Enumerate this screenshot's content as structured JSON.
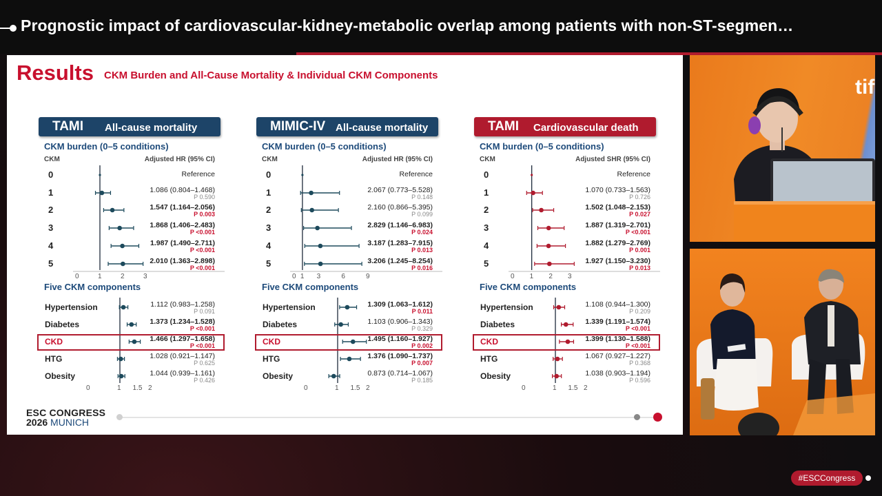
{
  "header": {
    "title": "Prognostic impact of cardiovascular-kidney-metabolic overlap among patients with non-ST-segmen…"
  },
  "slide": {
    "title": "Results",
    "subtitle": "CKM Burden and All-Cause Mortality & Individual CKM Components",
    "logo_line1": "ESC CONGRESS",
    "logo_year": "2026",
    "logo_city": "MUNICH"
  },
  "panels": [
    {
      "name": "TAMI",
      "outcome": "All-cause mortality",
      "header_color": "#1d4468",
      "marker_color": "#1d4a5c",
      "burden_title": "CKM burden (0–5 conditions)",
      "col_left": "CKM",
      "col_right": "Adjusted HR (95% CI)",
      "components_title": "Five CKM components",
      "burden_axis": {
        "min": 0,
        "max": 3,
        "ticks": [
          "0",
          "1",
          "2",
          "3"
        ]
      },
      "comp_axis": {
        "min": 0,
        "max": 2,
        "ticks": [
          "0",
          "1",
          "1.5",
          "2"
        ]
      },
      "burden": [
        {
          "label": "0",
          "hr": 1.0,
          "lo": 1.0,
          "hi": 1.0,
          "text": "Reference",
          "p": "",
          "sig": false
        },
        {
          "label": "1",
          "hr": 1.086,
          "lo": 0.804,
          "hi": 1.468,
          "text": "1.086 (0.804–1.468)",
          "p": "P 0.590",
          "sig": false
        },
        {
          "label": "2",
          "hr": 1.547,
          "lo": 1.164,
          "hi": 2.056,
          "text": "1.547 (1.164–2.056)",
          "p": "P 0.003",
          "sig": true
        },
        {
          "label": "3",
          "hr": 1.868,
          "lo": 1.406,
          "hi": 2.483,
          "text": "1.868 (1.406–2.483)",
          "p": "P <0.001",
          "sig": true
        },
        {
          "label": "4",
          "hr": 1.987,
          "lo": 1.49,
          "hi": 2.711,
          "text": "1.987 (1.490–2.711)",
          "p": "P <0.001",
          "sig": true
        },
        {
          "label": "5",
          "hr": 2.01,
          "lo": 1.363,
          "hi": 2.898,
          "text": "2.010 (1.363–2.898)",
          "p": "P <0.001",
          "sig": true
        }
      ],
      "components": [
        {
          "label": "Hypertension",
          "hr": 1.112,
          "lo": 0.983,
          "hi": 1.258,
          "text": "1.112 (0.983–1.258)",
          "p": "P 0.091",
          "sig": false
        },
        {
          "label": "Diabetes",
          "hr": 1.373,
          "lo": 1.234,
          "hi": 1.528,
          "text": "1.373 (1.234–1.528)",
          "p": "P <0.001",
          "sig": true
        },
        {
          "label": "CKD",
          "hr": 1.466,
          "lo": 1.297,
          "hi": 1.658,
          "text": "1.466 (1.297–1.658)",
          "p": "P <0.001",
          "sig": true
        },
        {
          "label": "HTG",
          "hr": 1.028,
          "lo": 0.921,
          "hi": 1.147,
          "text": "1.028 (0.921–1.147)",
          "p": "P 0.625",
          "sig": false
        },
        {
          "label": "Obesity",
          "hr": 1.044,
          "lo": 0.939,
          "hi": 1.161,
          "text": "1.044 (0.939–1.161)",
          "p": "P 0.426",
          "sig": false
        }
      ]
    },
    {
      "name": "MIMIC-IV",
      "outcome": "All-cause mortality",
      "header_color": "#1d4468",
      "marker_color": "#1d4a5c",
      "burden_title": "CKM burden (0–5 conditions)",
      "col_left": "CKM",
      "col_right": "Adjusted HR (95% CI)",
      "components_title": "Five CKM components",
      "burden_axis": {
        "min": 0,
        "max": 9,
        "ticks": [
          "0",
          "1",
          "3",
          "6",
          "9"
        ]
      },
      "comp_axis": {
        "min": 0,
        "max": 2,
        "ticks": [
          "0",
          "1",
          "1.5",
          "2"
        ]
      },
      "burden": [
        {
          "label": "0",
          "hr": 1.0,
          "lo": 1.0,
          "hi": 1.0,
          "text": "Reference",
          "p": "",
          "sig": false
        },
        {
          "label": "1",
          "hr": 2.067,
          "lo": 0.773,
          "hi": 5.528,
          "text": "2.067 (0.773–5.528)",
          "p": "P 0.148",
          "sig": false
        },
        {
          "label": "2",
          "hr": 2.16,
          "lo": 0.866,
          "hi": 5.395,
          "text": "2.160 (0.866–5.395)",
          "p": "P 0.099",
          "sig": false
        },
        {
          "label": "3",
          "hr": 2.829,
          "lo": 1.146,
          "hi": 6.983,
          "text": "2.829 (1.146–6.983)",
          "p": "P 0.024",
          "sig": true
        },
        {
          "label": "4",
          "hr": 3.187,
          "lo": 1.283,
          "hi": 7.915,
          "text": "3.187 (1.283–7.915)",
          "p": "P 0.013",
          "sig": true
        },
        {
          "label": "5",
          "hr": 3.206,
          "lo": 1.245,
          "hi": 8.254,
          "text": "3.206 (1.245–8.254)",
          "p": "P 0.016",
          "sig": true
        }
      ],
      "components": [
        {
          "label": "Hypertension",
          "hr": 1.309,
          "lo": 1.063,
          "hi": 1.612,
          "text": "1.309 (1.063–1.612)",
          "p": "P 0.011",
          "sig": true
        },
        {
          "label": "Diabetes",
          "hr": 1.103,
          "lo": 0.906,
          "hi": 1.343,
          "text": "1.103 (0.906–1.343)",
          "p": "P 0.329",
          "sig": false
        },
        {
          "label": "CKD",
          "hr": 1.495,
          "lo": 1.16,
          "hi": 1.927,
          "text": "1.495 (1.160–1.927)",
          "p": "P 0.002",
          "sig": true
        },
        {
          "label": "HTG",
          "hr": 1.376,
          "lo": 1.09,
          "hi": 1.737,
          "text": "1.376 (1.090–1.737)",
          "p": "P 0.007",
          "sig": true
        },
        {
          "label": "Obesity",
          "hr": 0.873,
          "lo": 0.714,
          "hi": 1.067,
          "text": "0.873 (0.714–1.067)",
          "p": "P 0.185",
          "sig": false
        }
      ]
    },
    {
      "name": "TAMI",
      "outcome": "Cardiovascular death",
      "header_color": "#b01b2e",
      "marker_color": "#b01b2e",
      "burden_title": "CKM burden (0–5 conditions)",
      "col_left": "CKM",
      "col_right": "Adjusted SHR (95% CI)",
      "components_title": "Five CKM components",
      "burden_axis": {
        "min": 0,
        "max": 3,
        "ticks": [
          "0",
          "1",
          "2",
          "3"
        ]
      },
      "comp_axis": {
        "min": 0,
        "max": 2,
        "ticks": [
          "0",
          "1",
          "1.5",
          "2"
        ]
      },
      "burden": [
        {
          "label": "0",
          "hr": 1.0,
          "lo": 1.0,
          "hi": 1.0,
          "text": "Reference",
          "p": "",
          "sig": false
        },
        {
          "label": "1",
          "hr": 1.07,
          "lo": 0.733,
          "hi": 1.563,
          "text": "1.070 (0.733–1.563)",
          "p": "P 0.726",
          "sig": false
        },
        {
          "label": "2",
          "hr": 1.502,
          "lo": 1.048,
          "hi": 2.153,
          "text": "1.502 (1.048–2.153)",
          "p": "P 0.027",
          "sig": true
        },
        {
          "label": "3",
          "hr": 1.887,
          "lo": 1.319,
          "hi": 2.701,
          "text": "1.887 (1.319–2.701)",
          "p": "P <0.001",
          "sig": true
        },
        {
          "label": "4",
          "hr": 1.882,
          "lo": 1.279,
          "hi": 2.769,
          "text": "1.882 (1.279–2.769)",
          "p": "P 0.001",
          "sig": true
        },
        {
          "label": "5",
          "hr": 1.927,
          "lo": 1.15,
          "hi": 3.23,
          "text": "1.927 (1.150–3.230)",
          "p": "P 0.013",
          "sig": true
        }
      ],
      "components": [
        {
          "label": "Hypertension",
          "hr": 1.108,
          "lo": 0.944,
          "hi": 1.3,
          "text": "1.108 (0.944–1.300)",
          "p": "P 0.209",
          "sig": false
        },
        {
          "label": "Diabetes",
          "hr": 1.339,
          "lo": 1.191,
          "hi": 1.574,
          "text": "1.339 (1.191–1.574)",
          "p": "P <0.001",
          "sig": true
        },
        {
          "label": "CKD",
          "hr": 1.399,
          "lo": 1.13,
          "hi": 1.588,
          "text": "1.399 (1.130–1.588)",
          "p": "P <0.001",
          "sig": true
        },
        {
          "label": "HTG",
          "hr": 1.067,
          "lo": 0.927,
          "hi": 1.227,
          "text": "1.067 (0.927–1.227)",
          "p": "P 0.368",
          "sig": false
        },
        {
          "label": "Obesity",
          "hr": 1.038,
          "lo": 0.903,
          "hi": 1.194,
          "text": "1.038 (0.903–1.194)",
          "p": "P 0.596",
          "sig": false
        }
      ]
    }
  ],
  "footer": {
    "hashtag": "#ESCCongress"
  },
  "cam1": {
    "backdrop_text": "tifi"
  }
}
